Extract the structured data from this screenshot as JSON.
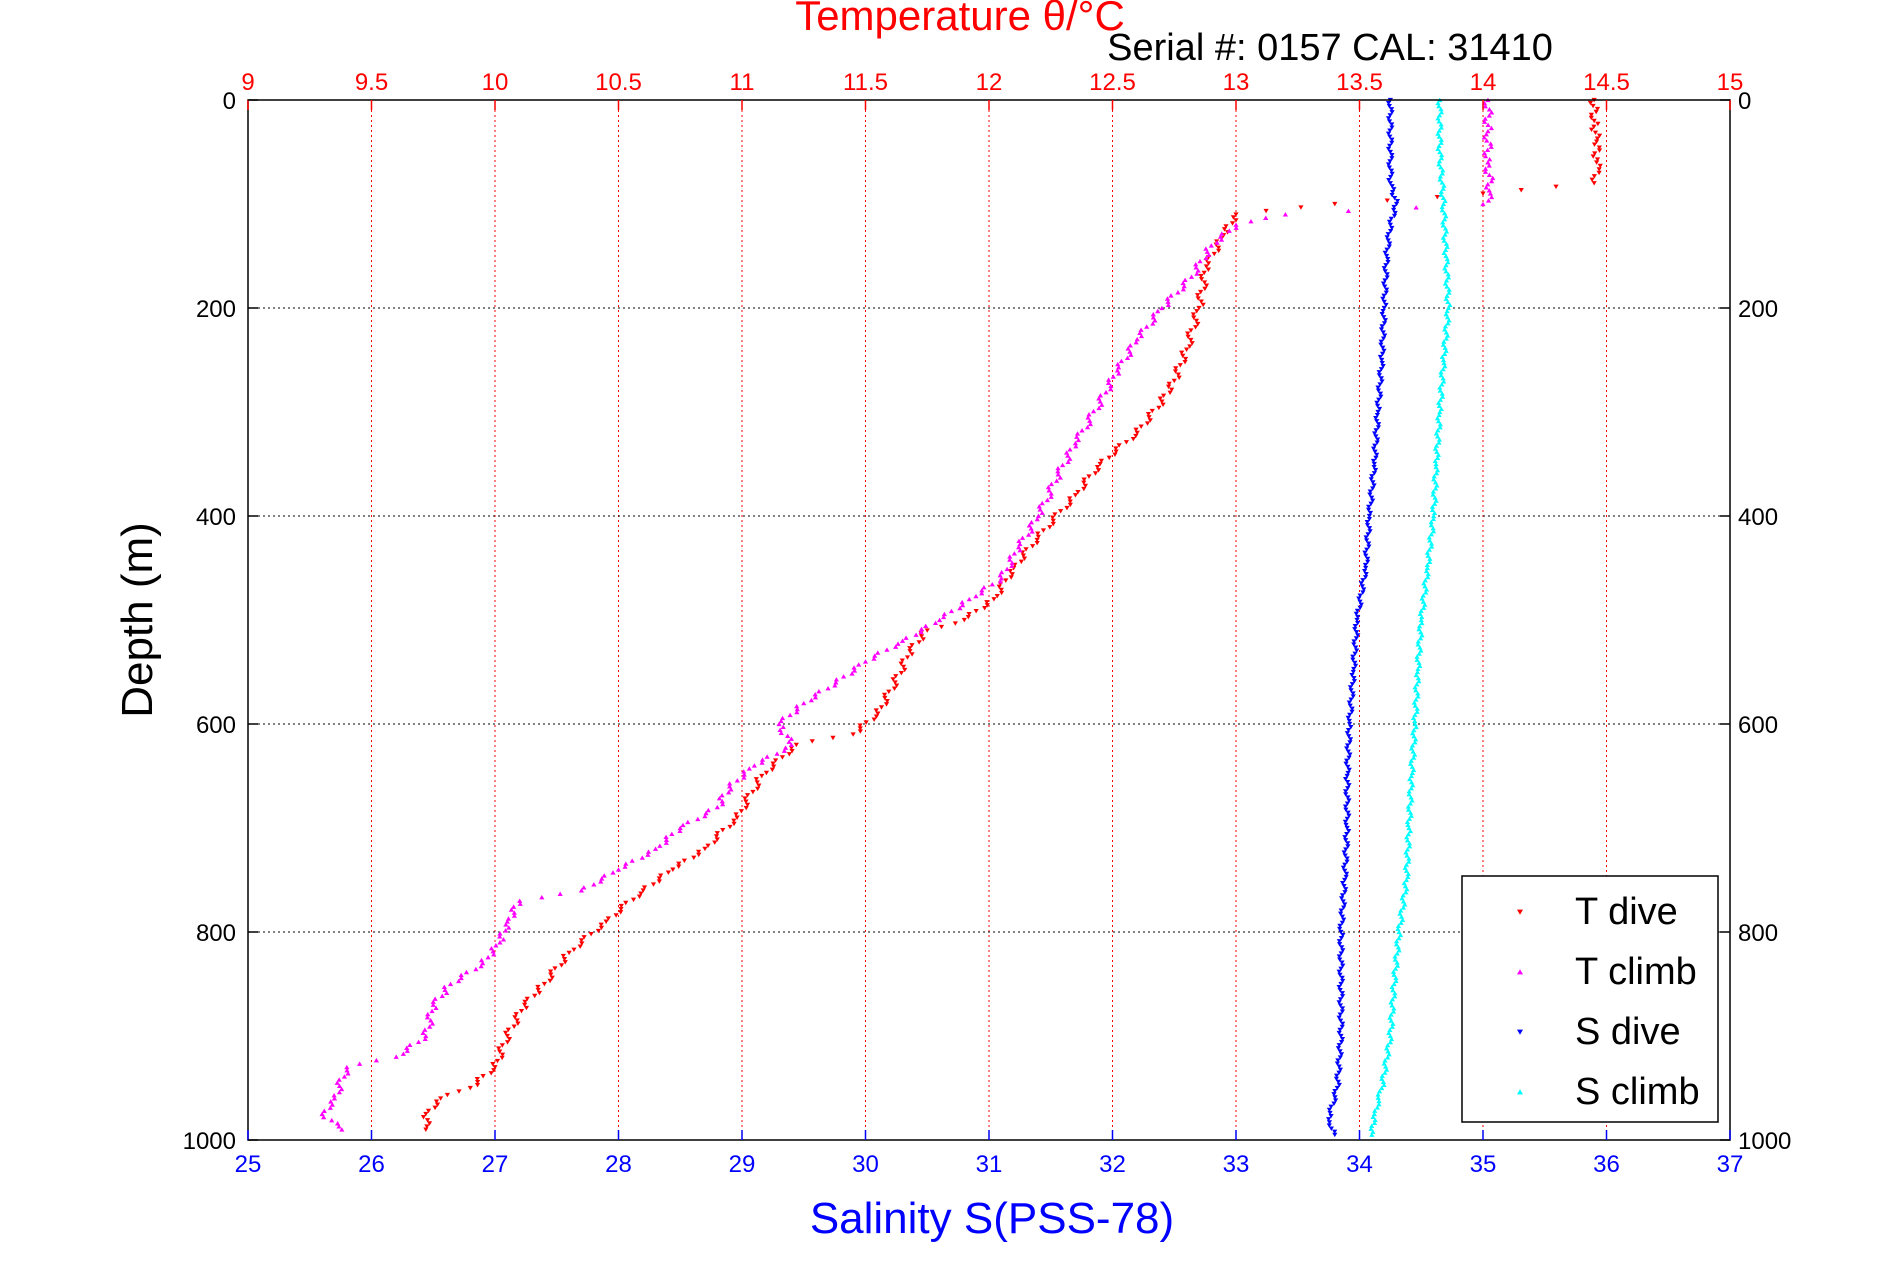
{
  "chart_data": {
    "type": "scatter",
    "title": "Temperature θ/°C",
    "subtitle": "Serial #: 0157  CAL: 31410",
    "top_axis": {
      "label": "Temperature θ/°C",
      "range": [
        9,
        15
      ],
      "ticks": [
        "9",
        "9.5",
        "10",
        "10.5",
        "11",
        "11.5",
        "12",
        "12.5",
        "13",
        "13.5",
        "14",
        "14.5",
        "15"
      ],
      "color": "#ff0000"
    },
    "bottom_axis": {
      "label": "Salinity S(PSS-78)",
      "range": [
        25,
        37
      ],
      "ticks": [
        "25",
        "26",
        "27",
        "28",
        "29",
        "30",
        "31",
        "32",
        "33",
        "34",
        "35",
        "36",
        "37"
      ],
      "color": "#0000ff"
    },
    "y_axis": {
      "label": "Depth (m)",
      "range": [
        0,
        1000
      ],
      "reversed": true,
      "ticks": [
        "0",
        "200",
        "400",
        "600",
        "800",
        "1000"
      ]
    },
    "grid": true,
    "legend_position": "bottom-right",
    "series": [
      {
        "name": "T dive",
        "axis": "temperature",
        "marker": "triangle-down",
        "color": "#ff0000",
        "points": [
          [
            14.45,
            0
          ],
          [
            14.45,
            20
          ],
          [
            14.46,
            40
          ],
          [
            14.46,
            60
          ],
          [
            14.47,
            70
          ],
          [
            14.45,
            80
          ],
          [
            14.0,
            90
          ],
          [
            13.4,
            100
          ],
          [
            13.0,
            110
          ],
          [
            12.95,
            130
          ],
          [
            12.88,
            160
          ],
          [
            12.85,
            200
          ],
          [
            12.8,
            240
          ],
          [
            12.75,
            270
          ],
          [
            12.7,
            290
          ],
          [
            12.6,
            320
          ],
          [
            12.45,
            350
          ],
          [
            12.35,
            380
          ],
          [
            12.2,
            420
          ],
          [
            12.1,
            450
          ],
          [
            12.02,
            480
          ],
          [
            11.9,
            500
          ],
          [
            11.75,
            510
          ],
          [
            11.68,
            530
          ],
          [
            11.62,
            560
          ],
          [
            11.55,
            590
          ],
          [
            11.45,
            610
          ],
          [
            11.22,
            620
          ],
          [
            11.08,
            650
          ],
          [
            10.98,
            690
          ],
          [
            10.85,
            720
          ],
          [
            10.72,
            740
          ],
          [
            10.6,
            760
          ],
          [
            10.45,
            790
          ],
          [
            10.3,
            820
          ],
          [
            10.2,
            850
          ],
          [
            10.12,
            870
          ],
          [
            10.05,
            900
          ],
          [
            10.0,
            930
          ],
          [
            9.9,
            950
          ],
          [
            9.78,
            960
          ],
          [
            9.72,
            975
          ],
          [
            9.72,
            990
          ]
        ]
      },
      {
        "name": "T climb",
        "axis": "temperature",
        "marker": "triangle-up",
        "color": "#ff00ff",
        "points": [
          [
            14.02,
            0
          ],
          [
            14.02,
            30
          ],
          [
            14.02,
            60
          ],
          [
            14.03,
            90
          ],
          [
            14.0,
            100
          ],
          [
            13.2,
            110
          ],
          [
            13.0,
            120
          ],
          [
            12.9,
            140
          ],
          [
            12.82,
            170
          ],
          [
            12.7,
            200
          ],
          [
            12.6,
            230
          ],
          [
            12.52,
            260
          ],
          [
            12.45,
            290
          ],
          [
            12.35,
            330
          ],
          [
            12.28,
            360
          ],
          [
            12.2,
            400
          ],
          [
            12.12,
            430
          ],
          [
            12.05,
            460
          ],
          [
            11.92,
            480
          ],
          [
            11.8,
            500
          ],
          [
            11.65,
            520
          ],
          [
            11.5,
            540
          ],
          [
            11.38,
            560
          ],
          [
            11.25,
            580
          ],
          [
            11.15,
            600
          ],
          [
            11.2,
            620
          ],
          [
            11.05,
            640
          ],
          [
            10.95,
            660
          ],
          [
            10.9,
            680
          ],
          [
            10.75,
            700
          ],
          [
            10.65,
            720
          ],
          [
            10.5,
            740
          ],
          [
            10.35,
            760
          ],
          [
            10.1,
            770
          ],
          [
            10.05,
            790
          ],
          [
            10.02,
            810
          ],
          [
            9.95,
            830
          ],
          [
            9.82,
            850
          ],
          [
            9.75,
            870
          ],
          [
            9.72,
            900
          ],
          [
            9.6,
            920
          ],
          [
            9.4,
            930
          ],
          [
            9.35,
            960
          ],
          [
            9.3,
            975
          ],
          [
            9.38,
            990
          ]
        ]
      },
      {
        "name": "S dive",
        "axis": "salinity",
        "marker": "triangle-down",
        "color": "#0000ff",
        "points": [
          [
            34.25,
            0
          ],
          [
            34.25,
            50
          ],
          [
            34.25,
            80
          ],
          [
            34.3,
            100
          ],
          [
            34.25,
            120
          ],
          [
            34.22,
            150
          ],
          [
            34.2,
            200
          ],
          [
            34.18,
            250
          ],
          [
            34.15,
            300
          ],
          [
            34.12,
            350
          ],
          [
            34.08,
            400
          ],
          [
            34.05,
            450
          ],
          [
            33.98,
            500
          ],
          [
            33.95,
            550
          ],
          [
            33.92,
            600
          ],
          [
            33.9,
            650
          ],
          [
            33.9,
            700
          ],
          [
            33.88,
            750
          ],
          [
            33.85,
            800
          ],
          [
            33.85,
            850
          ],
          [
            33.85,
            900
          ],
          [
            33.82,
            950
          ],
          [
            33.75,
            980
          ],
          [
            33.8,
            995
          ]
        ]
      },
      {
        "name": "S climb",
        "axis": "salinity",
        "marker": "triangle-up",
        "color": "#00ffff",
        "points": [
          [
            34.65,
            0
          ],
          [
            34.65,
            50
          ],
          [
            34.68,
            100
          ],
          [
            34.7,
            150
          ],
          [
            34.72,
            200
          ],
          [
            34.68,
            250
          ],
          [
            34.65,
            300
          ],
          [
            34.62,
            350
          ],
          [
            34.6,
            400
          ],
          [
            34.55,
            450
          ],
          [
            34.5,
            500
          ],
          [
            34.47,
            550
          ],
          [
            34.45,
            600
          ],
          [
            34.42,
            650
          ],
          [
            34.4,
            700
          ],
          [
            34.38,
            750
          ],
          [
            34.32,
            800
          ],
          [
            34.28,
            850
          ],
          [
            34.25,
            900
          ],
          [
            34.18,
            950
          ],
          [
            34.12,
            975
          ],
          [
            34.1,
            995
          ]
        ]
      }
    ]
  }
}
